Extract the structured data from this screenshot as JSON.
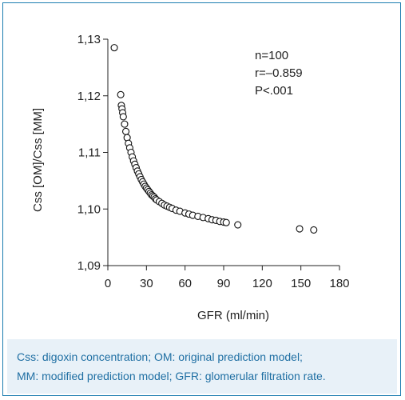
{
  "chart_data": {
    "type": "scatter",
    "title": "",
    "xlabel": "GFR (ml/min)",
    "ylabel": "Css [OM]/Css [MM]",
    "xlim": [
      0,
      180
    ],
    "ylim": [
      1.09,
      1.13
    ],
    "x_ticks": [
      "0",
      "30",
      "60",
      "90",
      "120",
      "150",
      "180"
    ],
    "y_ticks": [
      "1,09",
      "1,10",
      "1,11",
      "1,12",
      "1,13"
    ],
    "x_tick_values": [
      0,
      30,
      60,
      90,
      120,
      150,
      180
    ],
    "y_tick_values": [
      1.09,
      1.1,
      1.11,
      1.12,
      1.13
    ],
    "annotations": [
      "n=100",
      "r=–0.859",
      "P<.001"
    ],
    "grid": false,
    "points": [
      [
        5,
        1.1285
      ],
      [
        10,
        1.1202
      ],
      [
        10.5,
        1.1183
      ],
      [
        11,
        1.1177
      ],
      [
        11.5,
        1.117
      ],
      [
        12,
        1.1163
      ],
      [
        13,
        1.115
      ],
      [
        14,
        1.1137
      ],
      [
        15,
        1.1126
      ],
      [
        16,
        1.1116
      ],
      [
        17,
        1.1108
      ],
      [
        18,
        1.11
      ],
      [
        19,
        1.1092
      ],
      [
        20,
        1.1085
      ],
      [
        21,
        1.1079
      ],
      [
        22,
        1.1073
      ],
      [
        23,
        1.1067
      ],
      [
        24,
        1.1062
      ],
      [
        25,
        1.1057
      ],
      [
        26,
        1.1052
      ],
      [
        27,
        1.1048
      ],
      [
        28,
        1.1044
      ],
      [
        29,
        1.104
      ],
      [
        30,
        1.1037
      ],
      [
        31,
        1.1034
      ],
      [
        32,
        1.1031
      ],
      [
        33,
        1.1028
      ],
      [
        34,
        1.1025
      ],
      [
        35,
        1.1023
      ],
      [
        36,
        1.1021
      ],
      [
        37,
        1.1018
      ],
      [
        38,
        1.1016
      ],
      [
        40,
        1.1013
      ],
      [
        42,
        1.101
      ],
      [
        44,
        1.1007
      ],
      [
        46,
        1.1005
      ],
      [
        48,
        1.1003
      ],
      [
        50,
        1.1001
      ],
      [
        53,
        1.0998
      ],
      [
        56,
        1.0996
      ],
      [
        60,
        1.0993
      ],
      [
        63,
        1.0991
      ],
      [
        66,
        1.0989
      ],
      [
        70,
        1.0987
      ],
      [
        74,
        1.0985
      ],
      [
        78,
        1.0983
      ],
      [
        81,
        1.0981
      ],
      [
        84,
        1.098
      ],
      [
        87,
        1.0978
      ],
      [
        90,
        1.0977
      ],
      [
        92,
        1.0976
      ],
      [
        101,
        1.0972
      ],
      [
        149,
        1.0965
      ],
      [
        160,
        1.0963
      ]
    ]
  },
  "caption": {
    "line1": "Css: digoxin concentration; OM: original prediction model;",
    "line2": "MM: modified prediction model; GFR: glomerular filtration rate."
  },
  "colors": {
    "border": "#1c7db0",
    "caption_bg": "#e8f1f8",
    "caption_text": "#1f6fa3"
  }
}
